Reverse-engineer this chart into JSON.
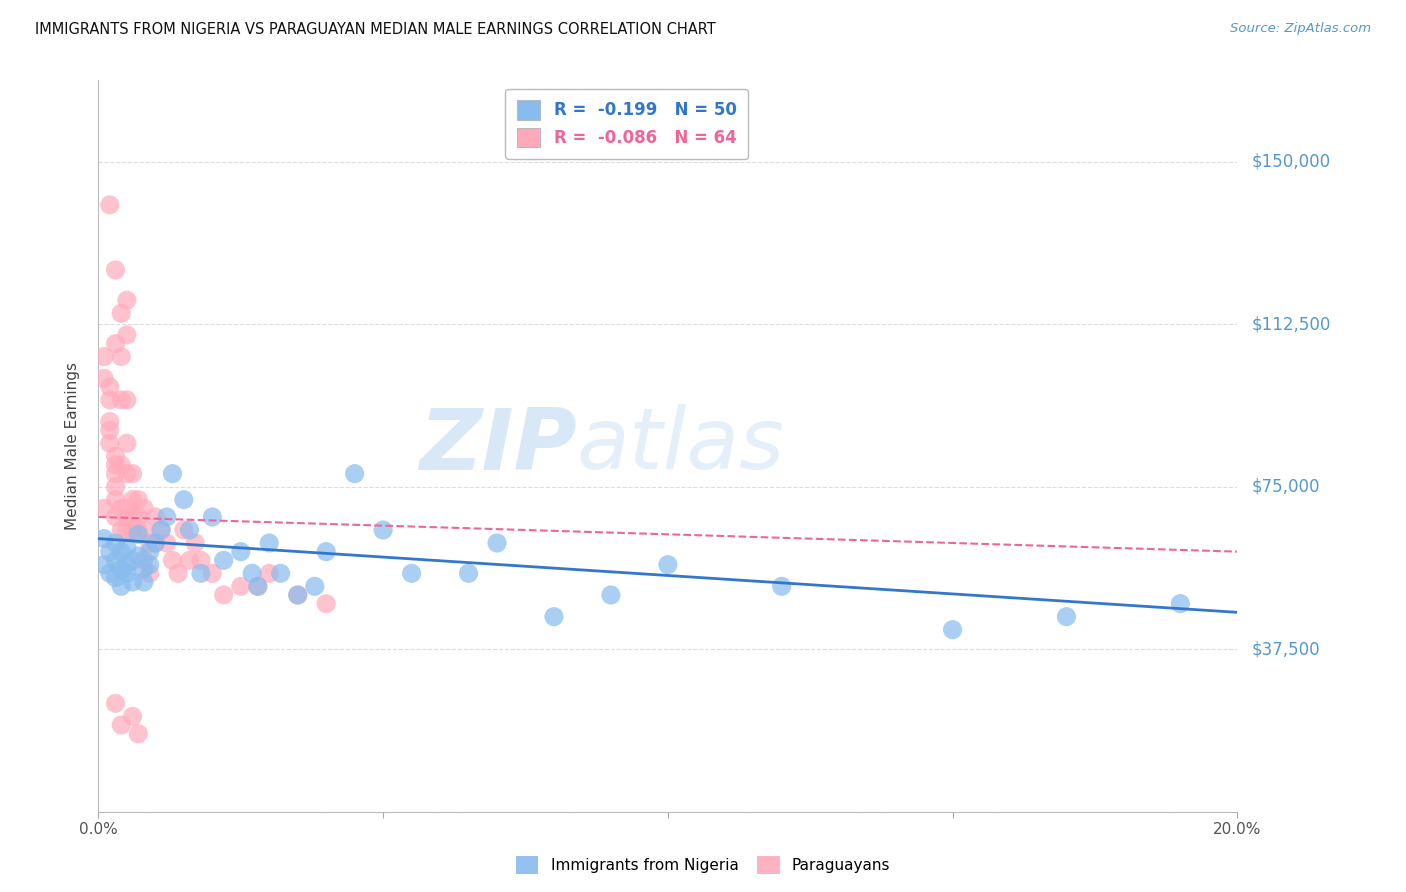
{
  "title": "IMMIGRANTS FROM NIGERIA VS PARAGUAYAN MEDIAN MALE EARNINGS CORRELATION CHART",
  "source": "Source: ZipAtlas.com",
  "ylabel": "Median Male Earnings",
  "xlim": [
    0.0,
    0.2
  ],
  "ylim": [
    0,
    168750
  ],
  "yticks": [
    0,
    37500,
    75000,
    112500,
    150000
  ],
  "ytick_labels": [
    "",
    "$37,500",
    "$75,000",
    "$112,500",
    "$150,000"
  ],
  "xticks": [
    0.0,
    0.05,
    0.1,
    0.15,
    0.2
  ],
  "xtick_labels": [
    "0.0%",
    "",
    "",
    "",
    "20.0%"
  ],
  "legend_r1": "R =  -0.199   N = 50",
  "legend_r2": "R =  -0.086   N = 64",
  "watermark_zip": "ZIP",
  "watermark_atlas": "atlas",
  "bg_color": "#ffffff",
  "grid_color": "#dddddd",
  "blue_color": "#88bbee",
  "pink_color": "#ffaabb",
  "blue_line_color": "#3377cc",
  "pink_line_color": "#ee6699",
  "axis_label_color": "#5599cc",
  "nigeria_x": [
    0.001,
    0.001,
    0.002,
    0.002,
    0.003,
    0.003,
    0.003,
    0.004,
    0.004,
    0.004,
    0.005,
    0.005,
    0.005,
    0.006,
    0.006,
    0.007,
    0.007,
    0.008,
    0.008,
    0.009,
    0.009,
    0.01,
    0.011,
    0.012,
    0.013,
    0.015,
    0.016,
    0.018,
    0.02,
    0.022,
    0.025,
    0.027,
    0.028,
    0.03,
    0.032,
    0.035,
    0.038,
    0.04,
    0.045,
    0.05,
    0.055,
    0.065,
    0.07,
    0.08,
    0.09,
    0.1,
    0.12,
    0.15,
    0.17,
    0.19
  ],
  "nigeria_y": [
    63000,
    57000,
    60000,
    55000,
    62000,
    58000,
    54000,
    56000,
    52000,
    60000,
    57000,
    55000,
    61000,
    58000,
    53000,
    64000,
    59000,
    56000,
    53000,
    60000,
    57000,
    62000,
    65000,
    68000,
    78000,
    72000,
    65000,
    55000,
    68000,
    58000,
    60000,
    55000,
    52000,
    62000,
    55000,
    50000,
    52000,
    60000,
    78000,
    65000,
    55000,
    55000,
    62000,
    45000,
    50000,
    57000,
    52000,
    42000,
    45000,
    48000
  ],
  "paraguay_x": [
    0.001,
    0.001,
    0.001,
    0.002,
    0.002,
    0.002,
    0.002,
    0.003,
    0.003,
    0.003,
    0.003,
    0.003,
    0.004,
    0.004,
    0.004,
    0.004,
    0.005,
    0.005,
    0.005,
    0.005,
    0.005,
    0.006,
    0.006,
    0.006,
    0.006,
    0.007,
    0.007,
    0.007,
    0.008,
    0.008,
    0.008,
    0.009,
    0.009,
    0.01,
    0.01,
    0.011,
    0.012,
    0.013,
    0.014,
    0.015,
    0.016,
    0.017,
    0.018,
    0.02,
    0.022,
    0.025,
    0.028,
    0.03,
    0.035,
    0.04,
    0.002,
    0.003,
    0.004,
    0.005,
    0.005,
    0.003,
    0.004,
    0.005,
    0.002,
    0.003,
    0.006,
    0.007,
    0.004,
    0.003
  ],
  "paraguay_y": [
    70000,
    105000,
    100000,
    95000,
    90000,
    85000,
    98000,
    78000,
    82000,
    72000,
    68000,
    75000,
    80000,
    70000,
    65000,
    95000,
    78000,
    68000,
    65000,
    85000,
    70000,
    72000,
    78000,
    65000,
    68000,
    72000,
    65000,
    68000,
    65000,
    58000,
    70000,
    62000,
    55000,
    68000,
    62000,
    65000,
    62000,
    58000,
    55000,
    65000,
    58000,
    62000,
    58000,
    55000,
    50000,
    52000,
    52000,
    55000,
    50000,
    48000,
    140000,
    125000,
    115000,
    118000,
    110000,
    108000,
    105000,
    95000,
    88000,
    80000,
    22000,
    18000,
    20000,
    25000
  ]
}
